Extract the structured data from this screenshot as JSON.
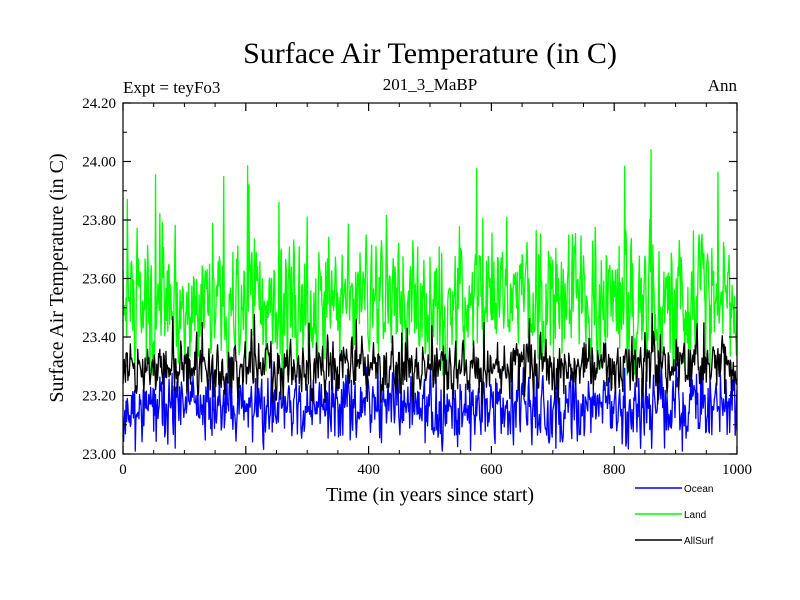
{
  "chart_data": {
    "type": "line",
    "title": "Surface Air Temperature (in C)",
    "subtitle": "201_3_MaBP",
    "left_note": "Expt = teyFo3",
    "right_note": "Ann",
    "xlabel": "Time (in years since start)",
    "ylabel": "Surface Air Temperature (in C)",
    "xlim": [
      0,
      1000
    ],
    "ylim": [
      23.0,
      24.2
    ],
    "x_ticks": [
      0,
      200,
      400,
      600,
      800,
      1000
    ],
    "x_tick_labels": [
      "0",
      "200",
      "400",
      "600",
      "800",
      "1000"
    ],
    "y_ticks": [
      23.0,
      23.2,
      23.4,
      23.6,
      23.8,
      24.0,
      24.2
    ],
    "y_tick_labels": [
      "23.00",
      "23.20",
      "23.40",
      "23.60",
      "23.80",
      "24.00",
      "24.20"
    ],
    "legend_position": "bottom-right, below plot",
    "series": [
      {
        "name": "Ocean",
        "color": "#0000ff",
        "mean": 23.16,
        "amplitude": 0.055,
        "spike_max": 23.35,
        "spike_min": 23.01,
        "seed": 11
      },
      {
        "name": "Land",
        "color": "#00ff00",
        "mean": 23.52,
        "amplitude": 0.11,
        "spike_max": 24.04,
        "spike_min": 23.27,
        "seed": 29
      },
      {
        "name": "AllSurf",
        "color": "#000000",
        "mean": 23.3,
        "amplitude": 0.045,
        "spike_max": 23.5,
        "spike_min": 23.17,
        "seed": 47
      }
    ]
  }
}
